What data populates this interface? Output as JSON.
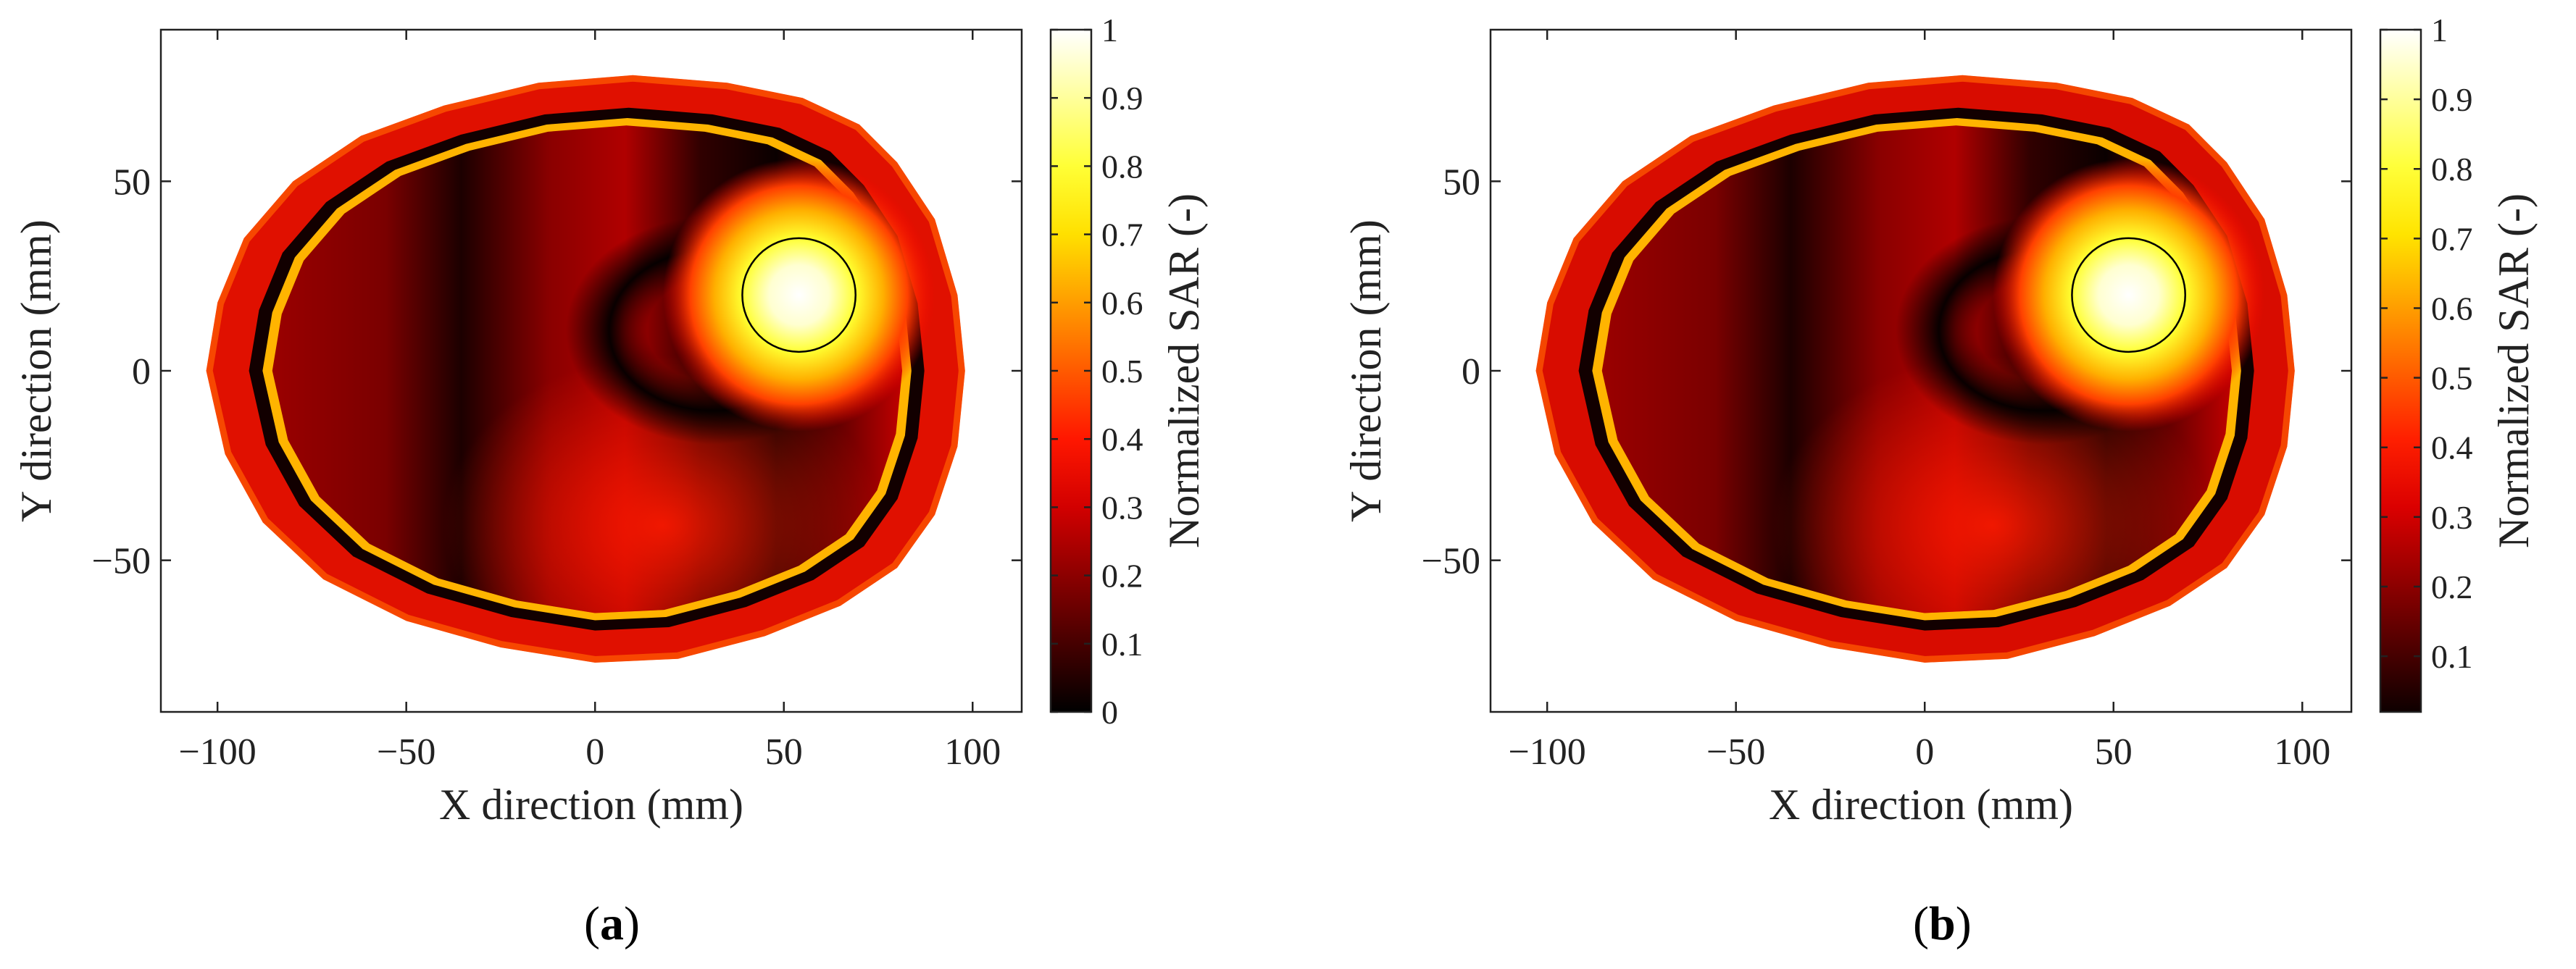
{
  "chart_data": [
    {
      "type": "heatmap",
      "panel_label": "b",
      "xlabel": "X direction (mm)",
      "ylabel": "Y direction (mm)",
      "xlim": [
        -115,
        113
      ],
      "ylim": [
        -90,
        90
      ],
      "xticks": [
        "−100",
        "−50",
        "0",
        "50",
        "100"
      ],
      "xtick_values": [
        -100,
        -50,
        0,
        50,
        100
      ],
      "yticks": [
        "50",
        "0",
        "−50"
      ],
      "ytick_values": [
        50,
        0,
        -50
      ],
      "colorbar": {
        "label": "Normalized SAR (-)",
        "range": [
          0,
          1
        ],
        "ticks": [
          "1",
          "0.9",
          "0.8",
          "0.7",
          "0.6",
          "0.5",
          "0.4",
          "0.3",
          "0.2",
          "0.1",
          "0"
        ],
        "tick_values": [
          1,
          0.9,
          0.8,
          0.7,
          0.6,
          0.5,
          0.4,
          0.3,
          0.2,
          0.1,
          0
        ]
      },
      "colormap": "hot",
      "target_circle": {
        "center_mm": [
          54,
          20
        ],
        "radius_mm": 15
      },
      "hotspot_value": 1.0
    },
    {
      "type": "heatmap",
      "panel_label": "b",
      "xlabel": "X direction (mm)",
      "ylabel": "Y direction (mm)",
      "xlim": [
        -115,
        113
      ],
      "ylim": [
        -90,
        90
      ],
      "xticks": [
        "−100",
        "−50",
        "0",
        "50",
        "100"
      ],
      "xtick_values": [
        -100,
        -50,
        0,
        50,
        100
      ],
      "yticks": [
        "50",
        "0",
        "−50"
      ],
      "ytick_values": [
        50,
        0,
        -50
      ],
      "colorbar": {
        "label": "Normalized SAR (-)",
        "range": [
          0.02,
          1
        ],
        "ticks": [
          "1",
          "0.9",
          "0.8",
          "0.7",
          "0.6",
          "0.5",
          "0.4",
          "0.3",
          "0.2",
          "0.1"
        ],
        "tick_values": [
          1,
          0.9,
          0.8,
          0.7,
          0.6,
          0.5,
          0.4,
          0.3,
          0.2,
          0.1
        ]
      },
      "colormap": "hot",
      "target_circle": {
        "center_mm": [
          54,
          20
        ],
        "radius_mm": 15
      },
      "hotspot_value": 1.0
    }
  ],
  "labels": {
    "a": "a",
    "b": "b"
  },
  "colors": {
    "hot_0": "#000000",
    "hot_1": "#ff0000",
    "hot_2": "#ffff00",
    "hot_3": "#ffffff"
  }
}
